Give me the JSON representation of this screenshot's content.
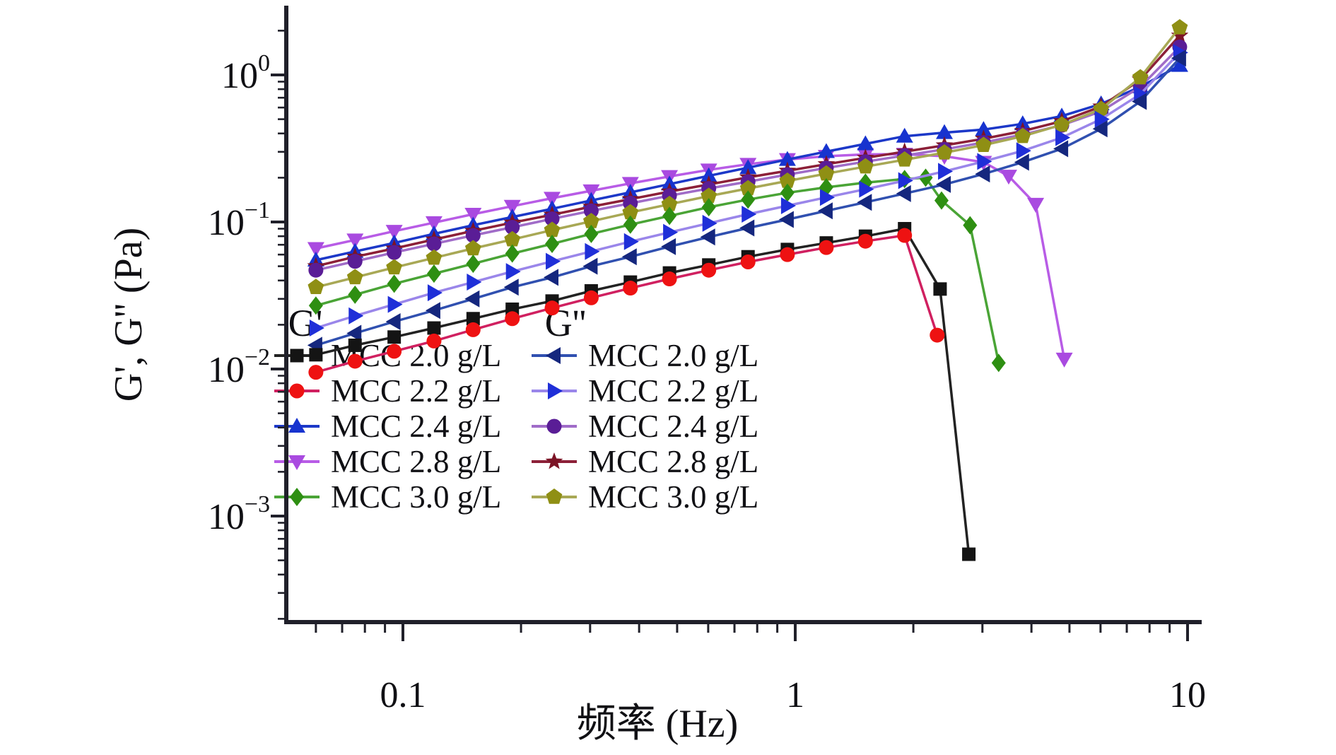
{
  "figure": {
    "background": "#ffffff",
    "axis_color": "#20202a",
    "text_color": "#101014"
  },
  "chart_data": {
    "type": "line",
    "title": "",
    "xlabel": "频率 (Hz)",
    "ylabel": "G', G'' (Pa)",
    "x_scale": "log",
    "y_scale": "log",
    "xlim": [
      0.05,
      11
    ],
    "ylim": [
      0.00019,
      2.96
    ],
    "grid": false,
    "x_ticks": {
      "major": [
        0.1,
        1,
        10
      ],
      "labels": [
        "0.1",
        "1",
        "10"
      ]
    },
    "y_ticks": {
      "major_exponents": [
        0,
        -1,
        -2,
        -3
      ],
      "base_label": "10"
    },
    "legend": {
      "position": "inside-bottom-left",
      "groups": [
        {
          "header": "G'",
          "series": [
            "gp-2.0",
            "gp-2.2",
            "gp-2.4",
            "gp-2.8",
            "gp-3.0"
          ]
        },
        {
          "header": "G''",
          "series": [
            "gpp-2.0",
            "gpp-2.2",
            "gpp-2.4",
            "gpp-2.8",
            "gpp-3.0"
          ]
        }
      ]
    },
    "series": [
      {
        "id": "gp-2.8",
        "group": "G'",
        "label": "MCC 2.8 g/L",
        "marker": "triangle-down",
        "color": "#a94ae0",
        "line": "#b85ce6",
        "x": [
          0.06,
          0.0755,
          0.095,
          0.12,
          0.151,
          0.19,
          0.24,
          0.302,
          0.38,
          0.478,
          0.602,
          0.758,
          0.955,
          1.2,
          1.51,
          1.9,
          2.4,
          3.02,
          3.5,
          4.1,
          4.85
        ],
        "y": [
          0.066,
          0.0755,
          0.0865,
          0.099,
          0.113,
          0.128,
          0.145,
          0.163,
          0.183,
          0.204,
          0.226,
          0.247,
          0.266,
          0.28,
          0.288,
          0.289,
          0.28,
          0.255,
          0.205,
          0.132,
          0.0117
        ]
      },
      {
        "id": "gp-2.4",
        "group": "G'",
        "label": "MCC 2.4 g/L",
        "marker": "triangle-up",
        "color": "#1733cf",
        "line": "#1c38c8",
        "x": [
          0.06,
          0.0755,
          0.095,
          0.12,
          0.151,
          0.19,
          0.24,
          0.302,
          0.38,
          0.478,
          0.602,
          0.758,
          0.955,
          1.2,
          1.51,
          1.9,
          2.4,
          3.02,
          3.8,
          4.78,
          6.02,
          7.58,
          9.55
        ],
        "y": [
          0.055,
          0.063,
          0.072,
          0.083,
          0.095,
          0.108,
          0.123,
          0.14,
          0.159,
          0.181,
          0.206,
          0.234,
          0.266,
          0.301,
          0.34,
          0.383,
          0.405,
          0.425,
          0.465,
          0.525,
          0.635,
          0.83,
          1.16
        ]
      },
      {
        "id": "gpp-2.8",
        "group": "G''",
        "label": "MCC 2.8 g/L",
        "marker": "star",
        "color": "#7c1426",
        "line": "#8c2038",
        "x": [
          0.06,
          0.0755,
          0.095,
          0.12,
          0.151,
          0.19,
          0.24,
          0.302,
          0.38,
          0.478,
          0.602,
          0.758,
          0.955,
          1.2,
          1.51,
          1.9,
          2.4,
          3.02,
          3.8,
          4.78,
          6.02,
          7.58,
          9.55
        ],
        "y": [
          0.05,
          0.058,
          0.066,
          0.076,
          0.087,
          0.099,
          0.112,
          0.127,
          0.143,
          0.161,
          0.18,
          0.201,
          0.223,
          0.247,
          0.273,
          0.301,
          0.332,
          0.368,
          0.415,
          0.485,
          0.61,
          0.93,
          1.85
        ]
      },
      {
        "id": "gpp-2.4",
        "group": "G''",
        "label": "MCC 2.4 g/L",
        "marker": "circle",
        "color": "#5a1d96",
        "line": "#a06cc8",
        "x": [
          0.06,
          0.0755,
          0.095,
          0.12,
          0.151,
          0.19,
          0.24,
          0.302,
          0.38,
          0.478,
          0.602,
          0.758,
          0.955,
          1.2,
          1.51,
          1.9,
          2.4,
          3.02,
          3.8,
          4.78,
          6.02,
          7.58,
          9.55
        ],
        "y": [
          0.047,
          0.054,
          0.062,
          0.071,
          0.081,
          0.092,
          0.105,
          0.119,
          0.134,
          0.151,
          0.169,
          0.188,
          0.21,
          0.233,
          0.257,
          0.283,
          0.312,
          0.347,
          0.393,
          0.455,
          0.565,
          0.83,
          1.55
        ]
      },
      {
        "id": "gpp-3.0",
        "group": "G''",
        "label": "MCC 3.0 g/L",
        "marker": "pentagon",
        "color": "#8f8f14",
        "line": "#a8a855",
        "x": [
          0.06,
          0.0755,
          0.095,
          0.12,
          0.151,
          0.19,
          0.24,
          0.302,
          0.38,
          0.478,
          0.602,
          0.758,
          0.955,
          1.2,
          1.51,
          1.9,
          2.4,
          3.02,
          3.8,
          4.78,
          6.02,
          7.58,
          9.55
        ],
        "y": [
          0.036,
          0.042,
          0.049,
          0.057,
          0.066,
          0.076,
          0.088,
          0.101,
          0.116,
          0.132,
          0.15,
          0.169,
          0.19,
          0.213,
          0.238,
          0.265,
          0.296,
          0.333,
          0.383,
          0.458,
          0.585,
          0.96,
          2.1
        ]
      },
      {
        "id": "gp-3.0",
        "group": "G'",
        "label": "MCC 3.0 g/L",
        "marker": "diamond",
        "color": "#2e8f12",
        "line": "#4aa436",
        "x": [
          0.06,
          0.0755,
          0.095,
          0.12,
          0.151,
          0.19,
          0.24,
          0.302,
          0.38,
          0.478,
          0.602,
          0.758,
          0.955,
          1.2,
          1.51,
          1.9,
          2.15,
          2.36,
          2.79,
          3.3
        ],
        "y": [
          0.027,
          0.032,
          0.038,
          0.0445,
          0.052,
          0.061,
          0.071,
          0.083,
          0.096,
          0.11,
          0.126,
          0.142,
          0.158,
          0.172,
          0.185,
          0.196,
          0.2,
          0.14,
          0.095,
          0.011
        ]
      },
      {
        "id": "gpp-2.2",
        "group": "G''",
        "label": "MCC 2.2 g/L",
        "marker": "triangle-right",
        "color": "#1f2fd8",
        "line": "#9a86ea",
        "x": [
          0.06,
          0.0755,
          0.095,
          0.12,
          0.151,
          0.19,
          0.24,
          0.302,
          0.38,
          0.478,
          0.602,
          0.758,
          0.955,
          1.2,
          1.51,
          1.9,
          2.4,
          3.02,
          3.8,
          4.78,
          6.02,
          7.58,
          9.55
        ],
        "y": [
          0.019,
          0.023,
          0.0275,
          0.033,
          0.039,
          0.046,
          0.054,
          0.063,
          0.0735,
          0.085,
          0.098,
          0.113,
          0.129,
          0.147,
          0.167,
          0.191,
          0.221,
          0.258,
          0.305,
          0.375,
          0.5,
          0.74,
          1.42
        ]
      },
      {
        "id": "gpp-2.0",
        "group": "G''",
        "label": "MCC 2.0 g/L",
        "marker": "triangle-left",
        "color": "#15277e",
        "line": "#3050b0",
        "x": [
          0.06,
          0.0755,
          0.095,
          0.12,
          0.151,
          0.19,
          0.24,
          0.302,
          0.38,
          0.478,
          0.602,
          0.758,
          0.955,
          1.2,
          1.51,
          1.9,
          2.4,
          3.02,
          3.8,
          4.78,
          6.02,
          7.58,
          9.55
        ],
        "y": [
          0.0145,
          0.0175,
          0.021,
          0.025,
          0.03,
          0.036,
          0.042,
          0.05,
          0.058,
          0.068,
          0.079,
          0.091,
          0.104,
          0.119,
          0.136,
          0.156,
          0.18,
          0.212,
          0.255,
          0.315,
          0.43,
          0.66,
          1.3
        ]
      },
      {
        "id": "gp-2.0",
        "group": "G'",
        "label": "MCC 2.0 g/L",
        "marker": "square",
        "color": "#141414",
        "line": "#222222",
        "x": [
          0.06,
          0.0755,
          0.095,
          0.12,
          0.151,
          0.19,
          0.24,
          0.302,
          0.38,
          0.478,
          0.602,
          0.758,
          0.955,
          1.2,
          1.51,
          1.9,
          2.34,
          2.77
        ],
        "y": [
          0.0125,
          0.0145,
          0.0165,
          0.019,
          0.022,
          0.0255,
          0.029,
          0.034,
          0.039,
          0.045,
          0.051,
          0.058,
          0.065,
          0.072,
          0.08,
          0.09,
          0.035,
          0.00055
        ]
      },
      {
        "id": "gp-2.2",
        "group": "G'",
        "label": "MCC 2.2 g/L",
        "marker": "circle",
        "color": "#ee1212",
        "line": "#d02060",
        "x": [
          0.06,
          0.0755,
          0.095,
          0.12,
          0.151,
          0.19,
          0.24,
          0.302,
          0.38,
          0.478,
          0.602,
          0.758,
          0.955,
          1.2,
          1.51,
          1.9,
          2.3
        ],
        "y": [
          0.0095,
          0.0113,
          0.0132,
          0.0155,
          0.0185,
          0.022,
          0.026,
          0.0305,
          0.0355,
          0.041,
          0.047,
          0.0535,
          0.06,
          0.067,
          0.074,
          0.081,
          0.017
        ]
      }
    ]
  }
}
